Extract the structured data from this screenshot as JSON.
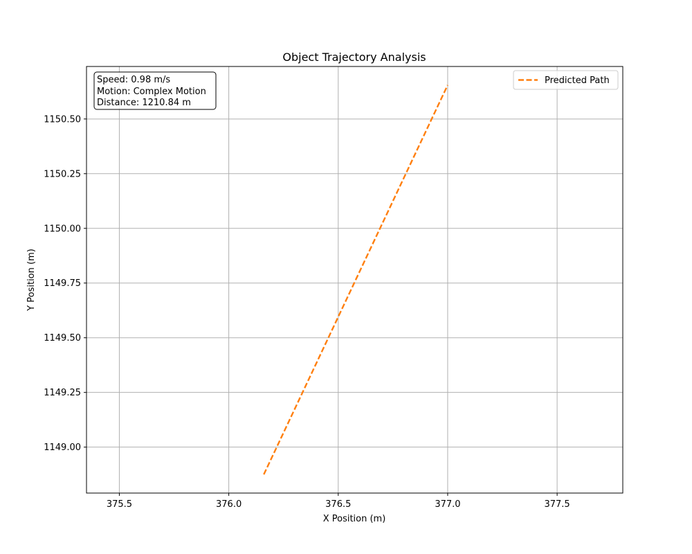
{
  "chart_data": {
    "type": "line",
    "title": "Object Trajectory Analysis",
    "xlabel": "X Position (m)",
    "ylabel": "Y Position (m)",
    "xlim": [
      375.35,
      377.8
    ],
    "ylim": [
      1148.79,
      1150.74
    ],
    "x_ticks": [
      375.5,
      376.0,
      376.5,
      377.0,
      377.5
    ],
    "x_tick_labels": [
      "375.5",
      "376.0",
      "376.5",
      "377.0",
      "377.5"
    ],
    "y_ticks": [
      1149.0,
      1149.25,
      1149.5,
      1149.75,
      1150.0,
      1150.25,
      1150.5
    ],
    "y_tick_labels": [
      "1149.00",
      "1149.25",
      "1149.50",
      "1149.75",
      "1150.00",
      "1150.25",
      "1150.50"
    ],
    "grid": true,
    "legend_position": "top-right",
    "series": [
      {
        "name": "Predicted Path",
        "color": "#ff7f0e",
        "line_style": "dashed",
        "x": [
          376.16,
          377.0
        ],
        "y": [
          1148.875,
          1150.655
        ]
      }
    ],
    "info_box": {
      "position": "top-left",
      "lines": [
        "Speed: 0.98 m/s",
        "Motion: Complex Motion",
        "Distance: 1210.84 m"
      ]
    }
  }
}
